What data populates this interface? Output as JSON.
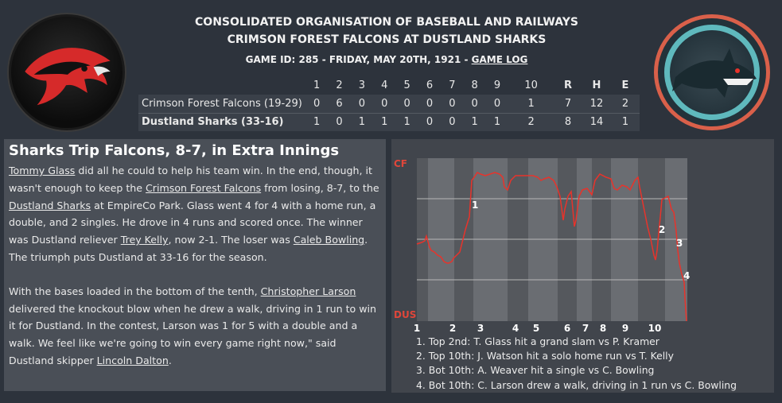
{
  "header": {
    "league": "CONSOLIDATED ORGANISATION OF BASEBALL AND RAILWAYS",
    "matchup": "CRIMSON FOREST FALCONS AT DUSTLAND SHARKS",
    "game_info": "GAME ID: 285 - FRIDAY, MAY 20TH, 1921 - ",
    "game_log_link": "GAME LOG"
  },
  "logos": {
    "away": "falcon-head-logo",
    "home": "shark-logo"
  },
  "linescore": {
    "columns": [
      "1",
      "2",
      "3",
      "4",
      "5",
      "6",
      "7",
      "8",
      "9",
      "10",
      "R",
      "H",
      "E"
    ],
    "rows": [
      {
        "team": "Crimson Forest Falcons (19-29)",
        "cells": [
          "0",
          "6",
          "0",
          "0",
          "0",
          "0",
          "0",
          "0",
          "0",
          "1",
          "7",
          "12",
          "2"
        ]
      },
      {
        "team": "Dustland Sharks (33-16)",
        "cells": [
          "1",
          "0",
          "1",
          "1",
          "1",
          "0",
          "0",
          "1",
          "1",
          "2",
          "8",
          "14",
          "1"
        ]
      }
    ]
  },
  "recap": {
    "headline": "Sharks Trip Falcons, 8-7, in Extra Innings",
    "p1": [
      {
        "t": "Tommy Glass",
        "link": true
      },
      {
        "t": " did all he could to help his team win. In the end, though, it wasn't enough to keep the "
      },
      {
        "t": "Crimson Forest Falcons",
        "link": true
      },
      {
        "t": " from losing, 8-7, to the "
      },
      {
        "t": "Dustland Sharks",
        "link": true
      },
      {
        "t": " at EmpireCo Park. Glass went 4 for 4 with a home run, a double, and 2 singles. He drove in 4 runs and scored once. The winner was Dustland reliever "
      },
      {
        "t": "Trey Kelly",
        "link": true
      },
      {
        "t": ", now 2-1. The loser was "
      },
      {
        "t": "Caleb Bowling",
        "link": true
      },
      {
        "t": ". The triumph puts Dustland at 33-16 for the season."
      }
    ],
    "p2": [
      {
        "t": "With the bases loaded in the bottom of the tenth, "
      },
      {
        "t": "Christopher Larson",
        "link": true
      },
      {
        "t": " delivered the knockout blow when he drew a walk, driving in 1 run to win it for Dustland. In the contest, Larson was 1 for 5 with a double and a walk. We feel like we're going to win every game right now,\" said Dustland skipper "
      },
      {
        "t": "Lincoln Dalton",
        "link": true
      },
      {
        "t": "."
      }
    ]
  },
  "win_prob": {
    "top_label": "CF",
    "bottom_label": "DUS",
    "label_color": "#e0463a",
    "line_color": "#e8332b",
    "inning_labels": [
      "1",
      "2",
      "3",
      "4",
      "5",
      "6",
      "7",
      "8",
      "9",
      "10"
    ],
    "markers": [
      "1",
      "2",
      "3",
      "4"
    ],
    "notes": [
      "1. Top 2nd: T. Glass hit a grand slam vs P. Kramer",
      "2. Top 10th: J. Watson hit a solo home run vs T. Kelly",
      "3. Bot 10th: A. Weaver hit a single vs C. Bowling",
      "4. Bot 10th: C. Larson drew a walk, driving in 1 run vs C. Bowling"
    ]
  }
}
